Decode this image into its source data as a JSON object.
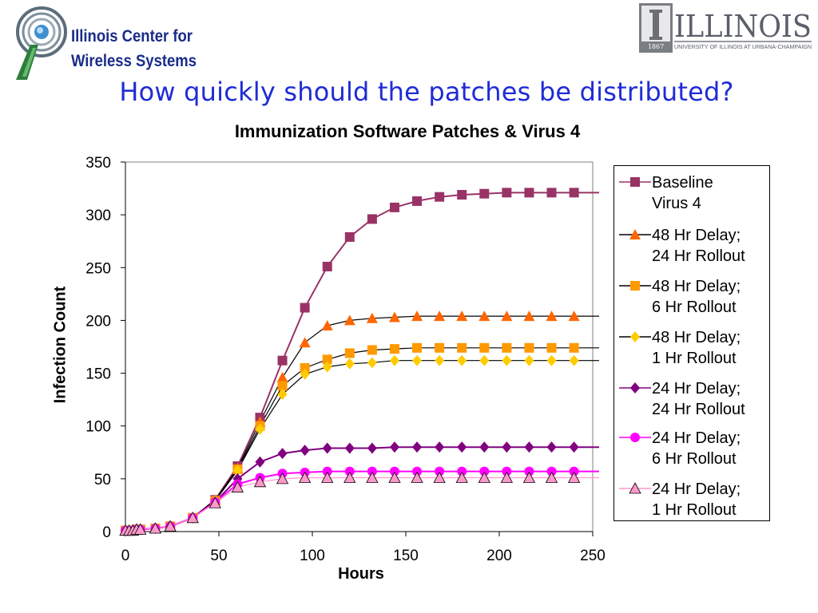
{
  "header": {
    "center_name_line1": "Illinois Center for",
    "center_name_line2": "Wireless Systems",
    "uiuc_wordmark": "ILLINOIS",
    "uiuc_subtitle": "UNIVERSITY OF ILLINOIS AT URBANA-CHAMPAIGN",
    "uiuc_year": "1867",
    "slide_title": "How quickly should the patches be distributed?"
  },
  "colors": {
    "title_blue": "#1f2bd6",
    "center_name_blue": "#1a2c8a",
    "uiuc_gray": "#5a5f6b"
  },
  "chart_data": {
    "type": "line",
    "title": "Immunization Software Patches & Virus 4",
    "xlabel": "Hours",
    "ylabel": "Infection Count",
    "xlim": [
      0,
      250
    ],
    "ylim": [
      0,
      350
    ],
    "xticks": [
      0,
      50,
      100,
      150,
      200,
      250
    ],
    "yticks": [
      0,
      50,
      100,
      150,
      200,
      250,
      300,
      350
    ],
    "grid": false,
    "legend": "right",
    "series": [
      {
        "name": "Baseline\nVirus 4",
        "marker": "square",
        "color": "#993366",
        "x": [
          0,
          2,
          4,
          6,
          8,
          16,
          24,
          36,
          48,
          60,
          72,
          84,
          96,
          108,
          120,
          132,
          144,
          156,
          168,
          180,
          192,
          204,
          216,
          228,
          240
        ],
        "y": [
          1,
          1,
          1,
          2,
          2,
          3,
          5,
          13,
          30,
          62,
          108,
          162,
          212,
          251,
          279,
          296,
          307,
          313,
          317,
          319,
          320,
          321,
          321,
          321,
          321
        ]
      },
      {
        "name": "48 Hr Delay;\n24 Hr Rollout",
        "marker": "triangle",
        "color": "#ff6600",
        "x": [
          0,
          2,
          4,
          6,
          8,
          16,
          24,
          36,
          48,
          60,
          72,
          84,
          96,
          108,
          120,
          132,
          144,
          156,
          168,
          180,
          192,
          204,
          216,
          228,
          240
        ],
        "y": [
          1,
          1,
          1,
          2,
          2,
          3,
          5,
          13,
          30,
          60,
          104,
          146,
          179,
          195,
          200,
          202,
          203,
          204,
          204,
          204,
          204,
          204,
          204,
          204,
          204
        ]
      },
      {
        "name": "48 Hr Delay;\n6 Hr Rollout",
        "marker": "square",
        "color": "#ff9900",
        "x": [
          0,
          2,
          4,
          6,
          8,
          16,
          24,
          36,
          48,
          60,
          72,
          84,
          96,
          108,
          120,
          132,
          144,
          156,
          168,
          180,
          192,
          204,
          216,
          228,
          240
        ],
        "y": [
          1,
          1,
          1,
          2,
          2,
          3,
          5,
          13,
          29,
          59,
          100,
          138,
          155,
          163,
          169,
          172,
          173,
          174,
          174,
          174,
          174,
          174,
          174,
          174,
          174
        ]
      },
      {
        "name": "48 Hr Delay;\n1 Hr Rollout",
        "marker": "diamond",
        "color": "#ffcc00",
        "x": [
          0,
          2,
          4,
          6,
          8,
          16,
          24,
          36,
          48,
          60,
          72,
          84,
          96,
          108,
          120,
          132,
          144,
          156,
          168,
          180,
          192,
          204,
          216,
          228,
          240
        ],
        "y": [
          1,
          1,
          1,
          2,
          2,
          3,
          5,
          13,
          29,
          58,
          97,
          130,
          149,
          156,
          159,
          160,
          162,
          162,
          162,
          162,
          162,
          162,
          162,
          162,
          162
        ]
      },
      {
        "name": "24 Hr Delay;\n24 Hr Rollout",
        "marker": "diamond",
        "color": "#800080",
        "x": [
          0,
          2,
          4,
          6,
          8,
          16,
          24,
          36,
          48,
          60,
          72,
          84,
          96,
          108,
          120,
          132,
          144,
          156,
          168,
          180,
          192,
          204,
          216,
          228,
          240
        ],
        "y": [
          1,
          1,
          1,
          2,
          2,
          3,
          5,
          13,
          28,
          50,
          66,
          74,
          77,
          79,
          79,
          79,
          80,
          80,
          80,
          80,
          80,
          80,
          80,
          80,
          80
        ]
      },
      {
        "name": "24 Hr Delay;\n6 Hr Rollout",
        "marker": "circle",
        "color": "#ff00ff",
        "x": [
          0,
          2,
          4,
          6,
          8,
          16,
          24,
          36,
          48,
          60,
          72,
          84,
          96,
          108,
          120,
          132,
          144,
          156,
          168,
          180,
          192,
          204,
          216,
          228,
          240
        ],
        "y": [
          1,
          1,
          1,
          2,
          2,
          3,
          5,
          13,
          28,
          45,
          51,
          55,
          56,
          57,
          57,
          57,
          57,
          57,
          57,
          57,
          57,
          57,
          57,
          57,
          57
        ]
      },
      {
        "name": "24 Hr Delay;\n1 Hr Rollout",
        "marker": "triangle",
        "color": "#ff99cc",
        "x": [
          0,
          2,
          4,
          6,
          8,
          16,
          24,
          36,
          48,
          60,
          72,
          84,
          96,
          108,
          120,
          132,
          144,
          156,
          168,
          180,
          192,
          204,
          216,
          228,
          240
        ],
        "y": [
          1,
          1,
          1,
          2,
          2,
          3,
          5,
          13,
          27,
          42,
          47,
          50,
          51,
          51,
          51,
          51,
          51,
          51,
          51,
          51,
          51,
          51,
          51,
          51,
          51
        ]
      }
    ]
  }
}
